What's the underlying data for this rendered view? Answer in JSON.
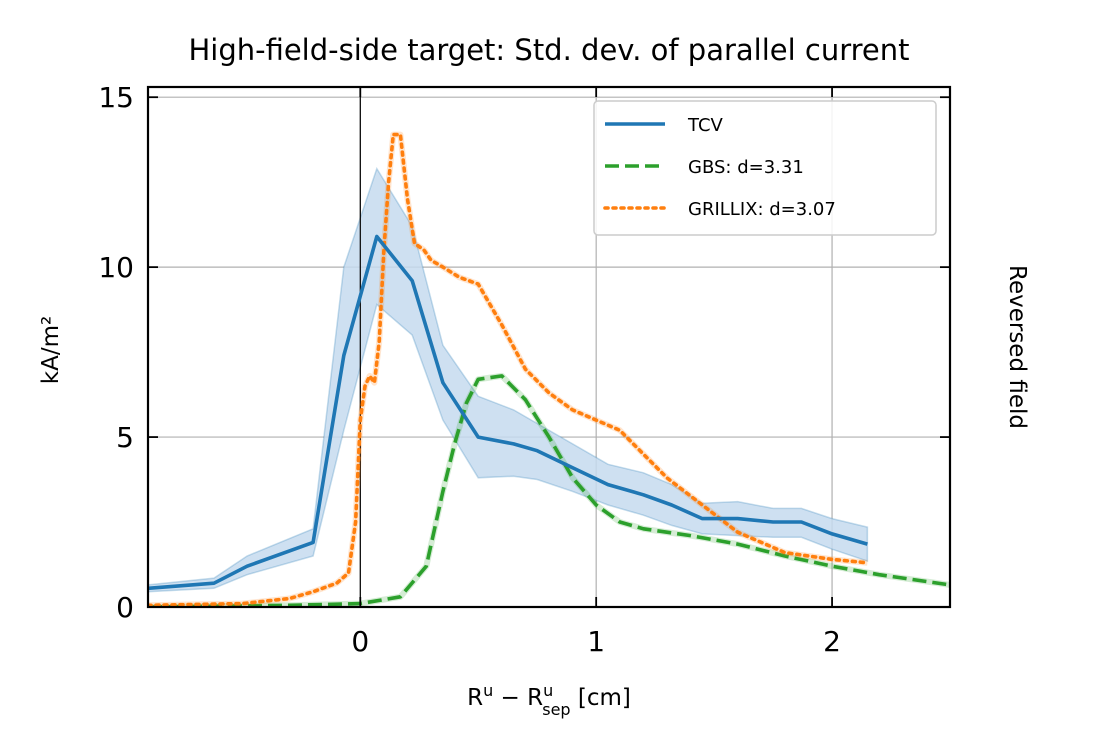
{
  "chart_data": {
    "type": "line",
    "title": "High-field-side target: Std. dev. of parallel current",
    "xlabel": "R^u - R^u_sep [cm]",
    "xlabel_main": "R",
    "xlabel_sup1": "u",
    "xlabel_minus": " − R",
    "xlabel_sup2": "u",
    "xlabel_sub2": "sep",
    "xlabel_unit": " [cm]",
    "ylabel": "kA/m²",
    "side_label": "Reversed field",
    "xlim": [
      -0.9,
      2.5
    ],
    "ylim": [
      0,
      15.3
    ],
    "xticks": [
      0,
      1,
      2
    ],
    "xtick_labels": [
      "0",
      "1",
      "2"
    ],
    "yticks": [
      0,
      5,
      10,
      15
    ],
    "ytick_labels": [
      "0",
      "5",
      "10",
      "15"
    ],
    "grid": true,
    "vline_x": 0,
    "legend_position": "top-right",
    "colors": {
      "tcv": "#1f77b4",
      "tcv_band": "#c6dbef",
      "gbs": "#2ca02c",
      "grillix": "#ff7f0e"
    },
    "series": [
      {
        "name": "TCV",
        "style": "solid",
        "x": [
          -0.9,
          -0.62,
          -0.48,
          -0.2,
          -0.07,
          0.07,
          0.22,
          0.35,
          0.5,
          0.65,
          0.75,
          0.9,
          1.05,
          1.2,
          1.32,
          1.45,
          1.6,
          1.75,
          1.87,
          2.0,
          2.15
        ],
        "y": [
          0.55,
          0.7,
          1.2,
          1.9,
          7.4,
          10.9,
          9.6,
          6.6,
          5.0,
          4.8,
          4.6,
          4.1,
          3.6,
          3.3,
          3.0,
          2.6,
          2.6,
          2.5,
          2.5,
          2.15,
          1.85
        ],
        "upper": [
          0.65,
          0.85,
          1.5,
          2.3,
          10.0,
          12.9,
          11.2,
          7.7,
          6.2,
          5.8,
          5.4,
          4.8,
          4.2,
          3.95,
          3.6,
          3.05,
          3.1,
          2.9,
          2.9,
          2.6,
          2.35
        ],
        "lower": [
          0.45,
          0.55,
          0.95,
          1.5,
          5.2,
          8.9,
          8.0,
          5.5,
          3.8,
          3.85,
          3.75,
          3.4,
          3.0,
          2.7,
          2.4,
          2.15,
          2.1,
          2.05,
          2.05,
          1.7,
          1.35
        ]
      },
      {
        "name": "GBS: d=3.31",
        "style": "dashed",
        "x": [
          -0.9,
          -0.3,
          0.0,
          0.17,
          0.28,
          0.35,
          0.4,
          0.45,
          0.5,
          0.6,
          0.7,
          0.8,
          0.9,
          1.0,
          1.1,
          1.2,
          1.4,
          1.6,
          1.8,
          2.0,
          2.2,
          2.5
        ],
        "y": [
          0.0,
          0.05,
          0.1,
          0.3,
          1.2,
          3.4,
          4.8,
          6.0,
          6.7,
          6.8,
          6.1,
          5.0,
          3.8,
          3.0,
          2.5,
          2.3,
          2.1,
          1.85,
          1.5,
          1.2,
          0.95,
          0.65
        ]
      },
      {
        "name": "GRILLIX: d=3.07",
        "style": "dotted",
        "x": [
          -0.9,
          -0.5,
          -0.3,
          -0.2,
          -0.1,
          -0.05,
          -0.02,
          0.0,
          0.02,
          0.04,
          0.06,
          0.08,
          0.1,
          0.12,
          0.14,
          0.17,
          0.2,
          0.23,
          0.27,
          0.3,
          0.35,
          0.42,
          0.5,
          0.6,
          0.7,
          0.8,
          0.9,
          1.0,
          1.1,
          1.2,
          1.3,
          1.45,
          1.6,
          1.8,
          2.0,
          2.15
        ],
        "y": [
          0.05,
          0.1,
          0.25,
          0.45,
          0.7,
          1.0,
          2.5,
          5.5,
          6.5,
          6.8,
          6.6,
          7.8,
          10.5,
          12.5,
          13.9,
          13.9,
          12.0,
          10.7,
          10.5,
          10.2,
          10.0,
          9.7,
          9.5,
          8.3,
          7.0,
          6.3,
          5.8,
          5.5,
          5.2,
          4.5,
          3.8,
          3.0,
          2.2,
          1.6,
          1.4,
          1.3
        ]
      }
    ]
  }
}
